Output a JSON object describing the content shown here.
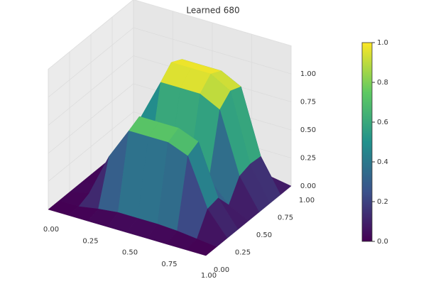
{
  "chart_data": {
    "type": "surface",
    "title": "Learned 680",
    "x": [
      0,
      0.125,
      0.25,
      0.375,
      0.5,
      0.625,
      0.75,
      0.875,
      1
    ],
    "y": [
      0,
      0.125,
      0.25,
      0.375,
      0.5,
      0.625,
      0.75,
      0.875,
      1
    ],
    "z": [
      [
        0,
        0,
        0,
        0,
        0,
        0,
        0,
        0,
        0
      ],
      [
        0,
        0,
        0.03,
        0.05,
        0.05,
        0.05,
        0.04,
        0.02,
        0
      ],
      [
        0,
        0.04,
        0.42,
        0.7,
        0.7,
        0.7,
        0.63,
        0.21,
        0
      ],
      [
        0,
        0.04,
        0.45,
        0.75,
        0.75,
        0.75,
        0.68,
        0.23,
        0
      ],
      [
        0,
        0.02,
        0.18,
        0.3,
        0.3,
        0.3,
        0.27,
        0.09,
        0
      ],
      [
        0,
        0.05,
        0.54,
        0.9,
        0.9,
        0.9,
        0.81,
        0.27,
        0
      ],
      [
        0,
        0.05,
        0.6,
        1,
        1,
        1,
        0.9,
        0.3,
        0
      ],
      [
        0,
        0.05,
        0.57,
        0.95,
        0.95,
        0.95,
        0.86,
        0.29,
        0
      ],
      [
        0,
        0.01,
        0.06,
        0.1,
        0.1,
        0.1,
        0.09,
        0.03,
        0
      ]
    ],
    "xlim": [
      0,
      1
    ],
    "ylim": [
      0,
      1
    ],
    "zlim": [
      0,
      1
    ],
    "xticks": [
      {
        "value": 0,
        "label": "0.00"
      },
      {
        "value": 0.25,
        "label": "0.25"
      },
      {
        "value": 0.5,
        "label": "0.50"
      },
      {
        "value": 0.75,
        "label": "0.75"
      },
      {
        "value": 1,
        "label": "1.00"
      }
    ],
    "yticks": [
      {
        "value": 0,
        "label": "0.00"
      },
      {
        "value": 0.25,
        "label": "0.25"
      },
      {
        "value": 0.5,
        "label": "0.50"
      },
      {
        "value": 0.75,
        "label": "0.75"
      },
      {
        "value": 1,
        "label": "1.00"
      }
    ],
    "zticks": [
      {
        "value": 0,
        "label": "0.00"
      },
      {
        "value": 0.25,
        "label": "0.25"
      },
      {
        "value": 0.5,
        "label": "0.50"
      },
      {
        "value": 0.75,
        "label": "0.75"
      },
      {
        "value": 1,
        "label": "1.00"
      }
    ],
    "colormap": "viridis",
    "grid": true,
    "colorbar": {
      "lim": [
        0,
        1
      ],
      "ticks": [
        {
          "value": 0,
          "label": "0.0"
        },
        {
          "value": 0.2,
          "label": "0.2"
        },
        {
          "value": 0.4,
          "label": "0.4"
        },
        {
          "value": 0.6,
          "label": "0.6"
        },
        {
          "value": 0.8,
          "label": "0.8"
        },
        {
          "value": 1,
          "label": "1.0"
        }
      ]
    }
  }
}
